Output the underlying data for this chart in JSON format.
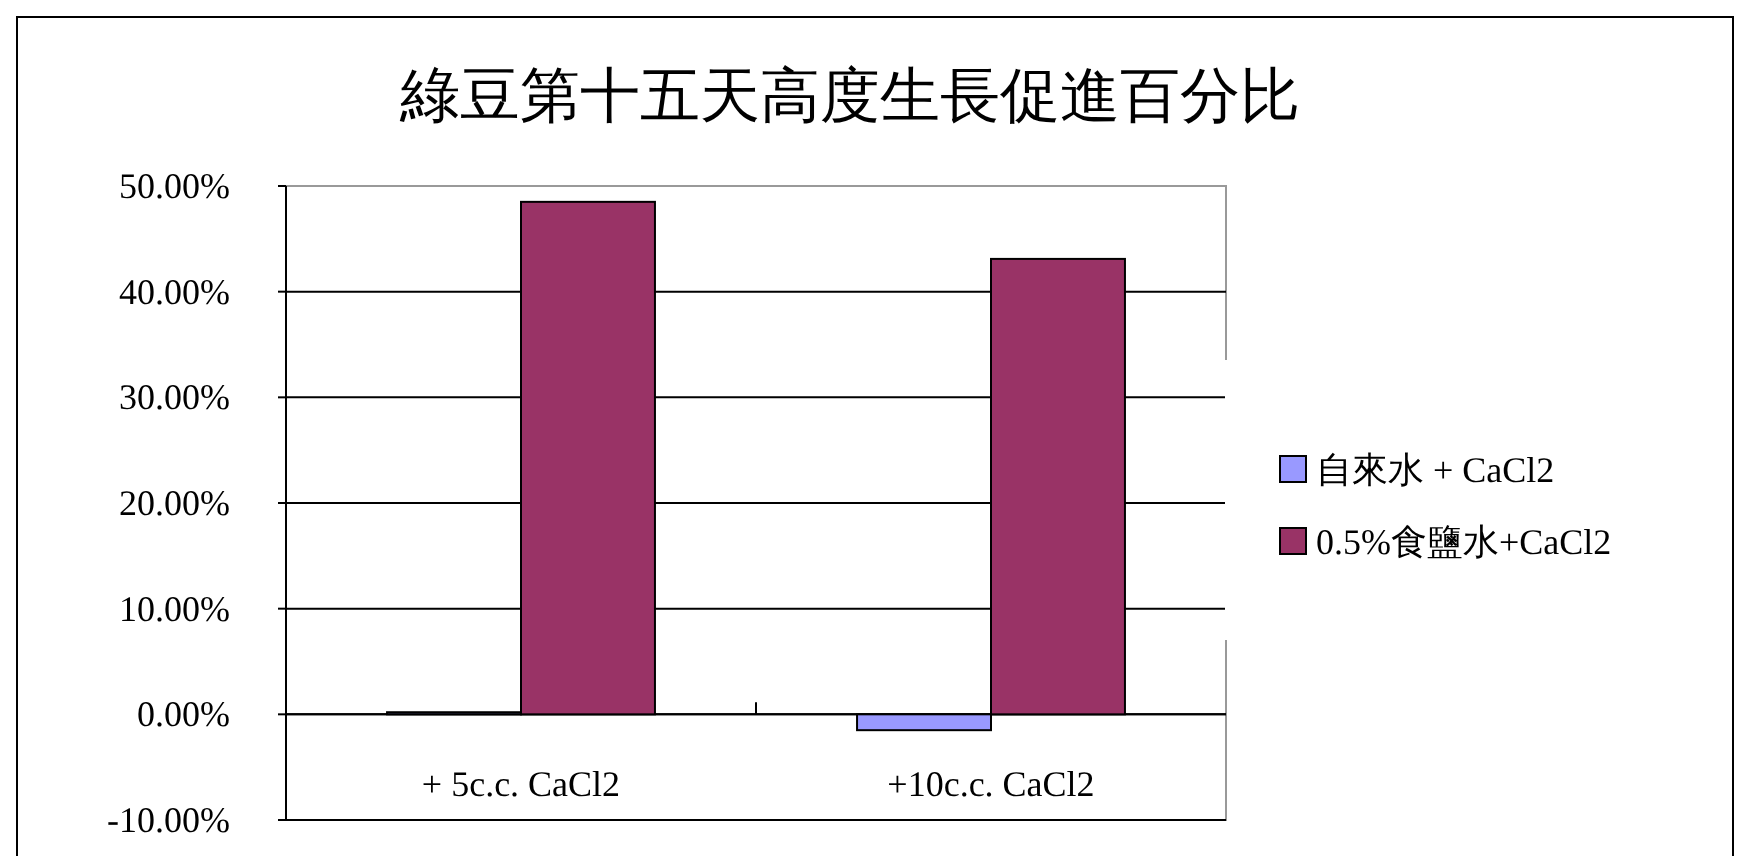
{
  "chart_data": {
    "type": "bar",
    "title": "綠豆第十五天高度生長促進百分比",
    "categories": [
      "+ 5c.c. CaCl2",
      "+10c.c. CaCl2"
    ],
    "series": [
      {
        "name": "自來水 + CaCl2",
        "color": "#9999ff",
        "values": [
          0.2,
          -1.5
        ]
      },
      {
        "name": "0.5%食鹽水+CaCl2",
        "color": "#993366",
        "values": [
          48.5,
          43.1
        ]
      }
    ],
    "ylim": [
      -10,
      50
    ],
    "yticks": [
      {
        "value": -10,
        "label": "-10.00%"
      },
      {
        "value": 0,
        "label": "0.00%"
      },
      {
        "value": 10,
        "label": "10.00%"
      },
      {
        "value": 20,
        "label": "20.00%"
      },
      {
        "value": 30,
        "label": "30.00%"
      },
      {
        "value": 40,
        "label": "40.00%"
      },
      {
        "value": 50,
        "label": "50.00%"
      }
    ],
    "grid": "y",
    "legend": "right"
  }
}
